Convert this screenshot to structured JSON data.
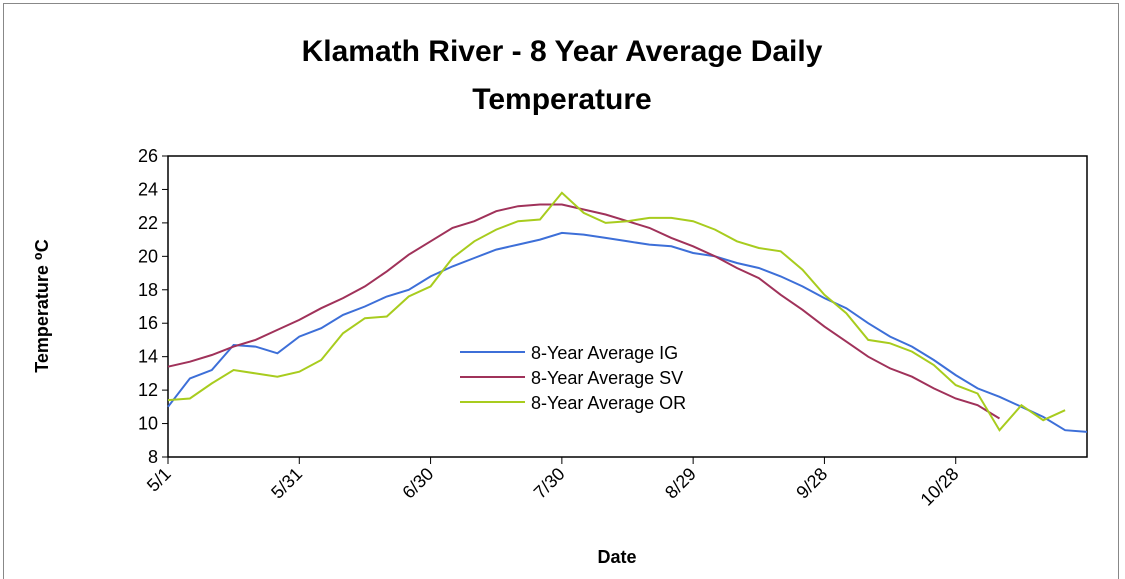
{
  "chart_data": {
    "type": "line",
    "title": "Klamath River - 8 Year Average Daily Temperature",
    "xlabel": "Date",
    "ylabel": "Temperature ⁰C",
    "x": [
      "5/1",
      "5/6",
      "5/11",
      "5/16",
      "5/21",
      "5/26",
      "5/31",
      "6/5",
      "6/10",
      "6/15",
      "6/20",
      "6/25",
      "6/30",
      "7/5",
      "7/10",
      "7/15",
      "7/20",
      "7/25",
      "7/30",
      "8/4",
      "8/9",
      "8/14",
      "8/19",
      "8/24",
      "8/29",
      "9/3",
      "9/8",
      "9/13",
      "9/18",
      "9/23",
      "9/28",
      "10/3",
      "10/8",
      "10/13",
      "10/18",
      "10/23",
      "10/28",
      "11/2",
      "11/7",
      "11/12",
      "11/17",
      "11/22",
      "11/27"
    ],
    "series": [
      {
        "name": "8-Year Average IG",
        "color": "#3d6fd8",
        "values": [
          11.0,
          12.7,
          13.2,
          14.7,
          14.6,
          14.2,
          15.2,
          15.7,
          16.5,
          17.0,
          17.6,
          18.0,
          18.8,
          19.4,
          19.9,
          20.4,
          20.7,
          21.0,
          21.4,
          21.3,
          21.1,
          20.9,
          20.7,
          20.6,
          20.2,
          20.0,
          19.6,
          19.3,
          18.8,
          18.2,
          17.5,
          16.9,
          16.0,
          15.2,
          14.6,
          13.8,
          12.9,
          12.1,
          11.6,
          11.0,
          10.4,
          9.6,
          9.5
        ]
      },
      {
        "name": "8-Year Average SV",
        "color": "#a0325a",
        "values": [
          13.4,
          13.7,
          14.1,
          14.6,
          15.0,
          15.6,
          16.2,
          16.9,
          17.5,
          18.2,
          19.1,
          20.1,
          20.9,
          21.7,
          22.1,
          22.7,
          23.0,
          23.1,
          23.1,
          22.8,
          22.5,
          22.1,
          21.7,
          21.1,
          20.6,
          20.0,
          19.3,
          18.7,
          17.7,
          16.8,
          15.8,
          14.9,
          14.0,
          13.3,
          12.8,
          12.1,
          11.5,
          11.1,
          10.3,
          null,
          null,
          null,
          null
        ]
      },
      {
        "name": "8-Year Average OR",
        "color": "#a8cc1e",
        "values": [
          11.4,
          11.5,
          12.4,
          13.2,
          13.0,
          12.8,
          13.1,
          13.8,
          15.4,
          16.3,
          16.4,
          17.6,
          18.2,
          19.9,
          20.9,
          21.6,
          22.1,
          22.2,
          23.8,
          22.6,
          22.0,
          22.1,
          22.3,
          22.3,
          22.1,
          21.6,
          20.9,
          20.5,
          20.3,
          19.2,
          17.7,
          16.6,
          15.0,
          14.8,
          14.3,
          13.5,
          12.3,
          11.8,
          9.6,
          11.1,
          10.2,
          10.8,
          null
        ]
      }
    ],
    "xlim": [
      "5/1",
      "11/27"
    ],
    "xticks": [
      "5/1",
      "5/31",
      "6/30",
      "7/30",
      "8/29",
      "9/28",
      "10/28"
    ],
    "ylim": [
      8,
      26
    ],
    "yticks": [
      8,
      10,
      12,
      14,
      16,
      18,
      20,
      22,
      24,
      26
    ],
    "grid": false
  }
}
